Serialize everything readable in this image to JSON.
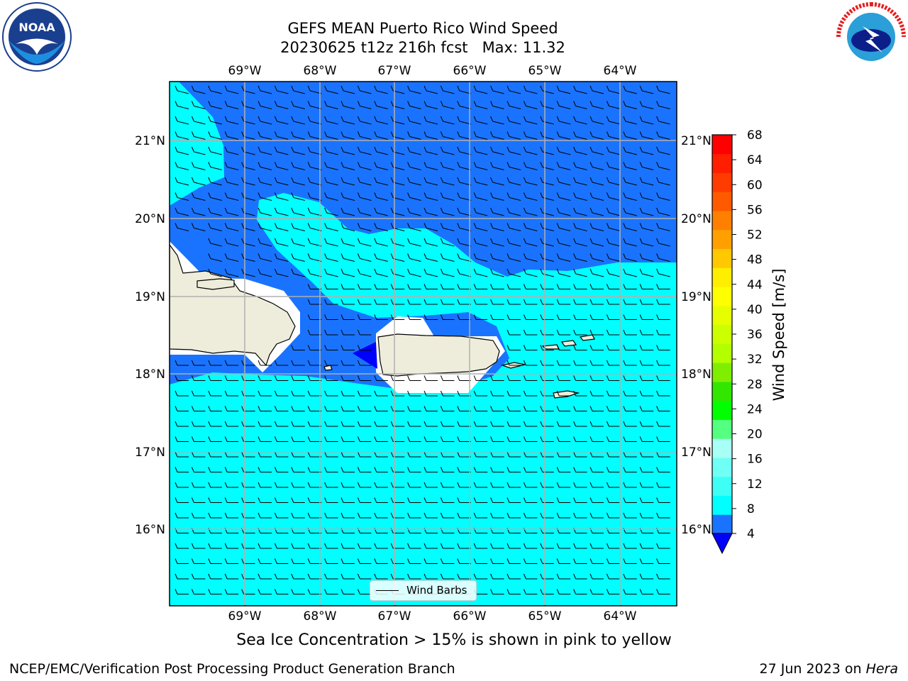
{
  "title_line1": "GEFS MEAN Puerto Rico Wind Speed",
  "title_line2": "20230625 t12z 216h fcst   Max: 11.32",
  "logos": {
    "left": "NOAA",
    "right": "NATIONAL WEATHER SERVICE"
  },
  "map": {
    "lon_ticks": [
      "69°W",
      "68°W",
      "67°W",
      "66°W",
      "65°W",
      "64°W"
    ],
    "lat_ticks": [
      "21°N",
      "20°N",
      "19°N",
      "18°N",
      "17°N",
      "16°N"
    ],
    "legend_label": "Wind Barbs",
    "colors": {
      "band_4_8": "#1a73ff",
      "band_8_12": "#00ffff",
      "band_12_16": "#5dfff0",
      "land": "#eeecdb"
    }
  },
  "colorbar": {
    "label": "Wind Speed [m/s]",
    "ticks": [
      "68",
      "64",
      "60",
      "56",
      "52",
      "48",
      "44",
      "40",
      "36",
      "32",
      "28",
      "24",
      "20",
      "16",
      "12",
      "8",
      "4"
    ],
    "colors_low_to_high": [
      "#1a73ff",
      "#00ffff",
      "#3dfff5",
      "#70fff5",
      "#a8fff5",
      "#55ff7f",
      "#00ff00",
      "#33e600",
      "#80ee00",
      "#b3ff00",
      "#ccff00",
      "#e6ff00",
      "#ffff00",
      "#ffee00",
      "#ffc800",
      "#ffa000",
      "#ff8000",
      "#ff5a00",
      "#ff3c00",
      "#ff1e00",
      "#ff0000"
    ],
    "under_color": "#0000ff"
  },
  "footer": {
    "seaice": "Sea Ice Concentration > 15% is shown in pink to yellow",
    "credit": "NCEP/EMC/Verification Post Processing Product Generation Branch",
    "date": "27 Jun 2023 on ",
    "machine": "Hera"
  }
}
